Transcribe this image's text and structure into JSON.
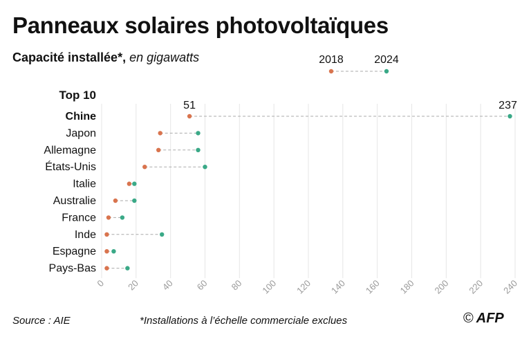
{
  "title": "Panneaux solaires photovoltaïques",
  "subtitle": {
    "bold": "Capacité installée*,",
    "italic": "en gigawatts"
  },
  "footer": {
    "source": "Source : AIE",
    "note": "*Installations à l’échelle commerciale exclues",
    "copyright": "©",
    "logo": "AFP"
  },
  "chart_data": {
    "type": "dumbbell",
    "group_label": "Top 10",
    "legend": {
      "start": "2018",
      "end": "2024"
    },
    "colors": {
      "start": "#d9744e",
      "end": "#3aa987",
      "connector": "#aaaaaa",
      "grid": "#e6e6e6"
    },
    "xlim": [
      0,
      240
    ],
    "x_ticks": [
      0,
      20,
      40,
      60,
      80,
      100,
      120,
      140,
      160,
      180,
      200,
      220,
      240
    ],
    "grid": true,
    "categories": [
      "Chine",
      "Japon",
      "Allemagne",
      "États-Unis",
      "Italie",
      "Australie",
      "France",
      "Inde",
      "Espagne",
      "Pays-Bas"
    ],
    "series": [
      {
        "name": "2018",
        "values": [
          51,
          34,
          33,
          25,
          16,
          8,
          4,
          3,
          3,
          3
        ]
      },
      {
        "name": "2024",
        "values": [
          237,
          56,
          56,
          60,
          19,
          19,
          12,
          35,
          7,
          15
        ]
      }
    ],
    "value_labels": [
      {
        "category": "Chine",
        "start": "51",
        "end": "237"
      }
    ]
  }
}
